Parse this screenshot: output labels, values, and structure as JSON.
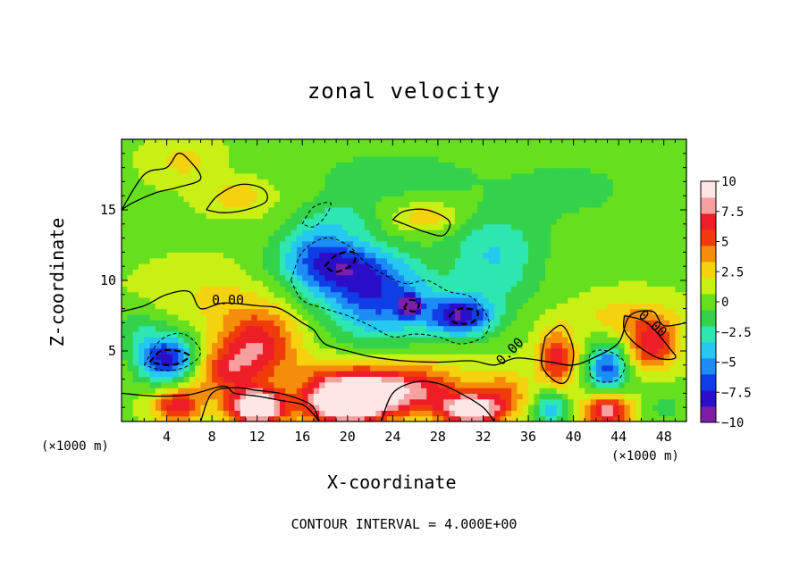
{
  "chart_data": {
    "type": "heatmap",
    "title": "zonal velocity",
    "xlabel": "X-coordinate",
    "ylabel": "Z-coordinate",
    "x_unit_label": "(×1000 m)",
    "xlim": [
      0,
      50
    ],
    "ylim": [
      0,
      20
    ],
    "x_ticks": [
      4,
      8,
      12,
      16,
      20,
      24,
      28,
      32,
      36,
      40,
      44,
      48
    ],
    "y_ticks": [
      5,
      10,
      15
    ],
    "colorbar": {
      "ticks": [
        "10",
        "7.5",
        "5",
        "2.5",
        "0",
        "−2.5",
        "−5",
        "−7.5",
        "−10"
      ],
      "range": [
        -10,
        10
      ],
      "colors": [
        "#7e1ea6",
        "#2a0fc8",
        "#0f3ee6",
        "#1e8cf5",
        "#25c9f0",
        "#2ee6b0",
        "#33d24a",
        "#66e01e",
        "#c8f014",
        "#f5d20f",
        "#f58c0a",
        "#f03c0a",
        "#ee1e28",
        "#f6a0a0",
        "#ffe6e6"
      ]
    },
    "contour_interval_text": "CONTOUR INTERVAL = 4.000E+00",
    "contour_labels": [
      "0.00",
      "0.00",
      "0.00"
    ],
    "background_value": 0.5,
    "features": [
      {
        "x": 4,
        "z": 4.5,
        "value": -8.5,
        "sx": 1.8,
        "sz": 1.2
      },
      {
        "x": 12,
        "z": 5.5,
        "value": 6.5,
        "sx": 2.5,
        "sz": 1.8
      },
      {
        "x": 9,
        "z": 3.5,
        "value": 4.5,
        "sx": 2.0,
        "sz": 1.2
      },
      {
        "x": 19,
        "z": 11.0,
        "value": -7.0,
        "sx": 3.5,
        "sz": 1.5
      },
      {
        "x": 23,
        "z": 8.5,
        "value": -6.5,
        "sx": 3.5,
        "sz": 2.0
      },
      {
        "x": 25.5,
        "z": 8.2,
        "value": -9.5,
        "sx": 0.6,
        "sz": 0.5
      },
      {
        "x": 30,
        "z": 7.5,
        "value": -8.0,
        "sx": 2.0,
        "sz": 1.0
      },
      {
        "x": 33,
        "z": 10.5,
        "value": -3.0,
        "sx": 3.0,
        "sz": 2.0
      },
      {
        "x": 17,
        "z": 13.0,
        "value": -2.5,
        "sx": 2.0,
        "sz": 1.5
      },
      {
        "x": 20,
        "z": 14.5,
        "value": -2.0,
        "sx": 2.0,
        "sz": 1.0
      },
      {
        "x": 27,
        "z": 14.5,
        "value": 3.0,
        "sx": 2.0,
        "sz": 0.7
      },
      {
        "x": 10.5,
        "z": 16.0,
        "value": 2.5,
        "sx": 2.0,
        "sz": 0.8
      },
      {
        "x": 5.5,
        "z": 18.5,
        "value": 2.0,
        "sx": 2.0,
        "sz": 1.0
      },
      {
        "x": 24,
        "z": 17.5,
        "value": -1.8,
        "sx": 6.0,
        "sz": 1.5
      },
      {
        "x": 40,
        "z": 16.5,
        "value": -1.5,
        "sx": 5.0,
        "sz": 2.0
      },
      {
        "x": 33,
        "z": 13.0,
        "value": -2.0,
        "sx": 3.0,
        "sz": 1.5
      },
      {
        "x": 12,
        "z": 1.0,
        "value": 11.0,
        "sx": 1.8,
        "sz": 0.9
      },
      {
        "x": 20,
        "z": 1.2,
        "value": 10.0,
        "sx": 2.5,
        "sz": 1.0
      },
      {
        "x": 20,
        "z": 2.5,
        "value": 6.0,
        "sx": 3.5,
        "sz": 1.2
      },
      {
        "x": 26,
        "z": 2.2,
        "value": 6.0,
        "sx": 3.5,
        "sz": 1.3
      },
      {
        "x": 31,
        "z": 0.8,
        "value": 9.5,
        "sx": 1.8,
        "sz": 0.8
      },
      {
        "x": 5,
        "z": 1.2,
        "value": 6.5,
        "sx": 1.5,
        "sz": 0.9
      },
      {
        "x": 43,
        "z": 0.8,
        "value": 8.0,
        "sx": 1.5,
        "sz": 0.8
      },
      {
        "x": 38.5,
        "z": 4.5,
        "value": 6.0,
        "sx": 1.2,
        "sz": 1.5
      },
      {
        "x": 47,
        "z": 5.5,
        "value": 6.5,
        "sx": 1.5,
        "sz": 1.2
      },
      {
        "x": 43,
        "z": 3.8,
        "value": -7.0,
        "sx": 1.2,
        "sz": 1.2
      },
      {
        "x": 38,
        "z": 1.0,
        "value": -5.0,
        "sx": 1.0,
        "sz": 0.9
      },
      {
        "x": 34,
        "z": 2.0,
        "value": 3.5,
        "sx": 1.5,
        "sz": 1.2
      },
      {
        "x": 15,
        "z": 2.5,
        "value": -1.0,
        "sx": 1.0,
        "sz": 0.8
      },
      {
        "x": 48,
        "z": 1.0,
        "value": -1.5,
        "sx": 1.5,
        "sz": 1.0
      },
      {
        "x": 1.5,
        "z": 6.5,
        "value": -2.0,
        "sx": 1.5,
        "sz": 1.2
      },
      {
        "x": 45,
        "z": 7.5,
        "value": 2.5,
        "sx": 3.0,
        "sz": 1.0
      },
      {
        "x": 8,
        "z": 9.0,
        "value": 1.5,
        "sx": 4.0,
        "sz": 1.5
      }
    ],
    "contours": [
      {
        "style": "solid",
        "points": [
          [
            0,
            7.8
          ],
          [
            2,
            8.2
          ],
          [
            4,
            9.0
          ],
          [
            6,
            9.2
          ],
          [
            7,
            8.0
          ],
          [
            9,
            8.4
          ],
          [
            12,
            8.2
          ],
          [
            14,
            8.0
          ],
          [
            16,
            7.0
          ],
          [
            17,
            6.5
          ],
          [
            18,
            5.5
          ],
          [
            20,
            5.0
          ],
          [
            22,
            4.6
          ],
          [
            25,
            4.3
          ],
          [
            28,
            4.2
          ],
          [
            31,
            4.3
          ],
          [
            33,
            4.0
          ],
          [
            35,
            4.5
          ],
          [
            38,
            4.2
          ],
          [
            40,
            4.0
          ],
          [
            42,
            4.6
          ],
          [
            44,
            5.6
          ],
          [
            45,
            7.5
          ],
          [
            47,
            7.8
          ],
          [
            48,
            6.8
          ],
          [
            50,
            7.0
          ]
        ]
      },
      {
        "style": "solid",
        "points": [
          [
            0,
            2.0
          ],
          [
            3,
            1.8
          ],
          [
            6,
            1.9
          ],
          [
            9,
            2.5
          ],
          [
            10,
            2.0
          ],
          [
            12,
            1.8
          ],
          [
            14,
            1.5
          ],
          [
            16,
            1.2
          ],
          [
            17,
            0.5
          ],
          [
            17.5,
            0
          ]
        ]
      },
      {
        "style": "solid",
        "points": [
          [
            7,
            0
          ],
          [
            8,
            2.0
          ],
          [
            10,
            2.4
          ],
          [
            12,
            2.2
          ],
          [
            14,
            2.0
          ],
          [
            16,
            1.5
          ],
          [
            17,
            1.0
          ],
          [
            17.5,
            0
          ]
        ]
      },
      {
        "style": "solid",
        "points": [
          [
            23,
            0
          ],
          [
            24,
            2.0
          ],
          [
            26,
            2.8
          ],
          [
            28,
            2.7
          ],
          [
            30,
            2.0
          ],
          [
            32,
            1.0
          ],
          [
            33,
            0
          ]
        ]
      },
      {
        "style": "solid",
        "points": [
          [
            7.5,
            15.0
          ],
          [
            8.5,
            16.0
          ],
          [
            10.5,
            16.8
          ],
          [
            12.5,
            16.5
          ],
          [
            12.8,
            15.6
          ],
          [
            11,
            15.0
          ],
          [
            9,
            14.8
          ],
          [
            7.5,
            15.0
          ]
        ]
      },
      {
        "style": "solid",
        "points": [
          [
            24,
            14.3
          ],
          [
            25,
            14.9
          ],
          [
            27,
            15.0
          ],
          [
            29,
            14.2
          ],
          [
            28.5,
            13.2
          ],
          [
            27,
            13.4
          ],
          [
            25,
            14.0
          ],
          [
            24,
            14.3
          ]
        ]
      },
      {
        "style": "solid",
        "points": [
          [
            0,
            15.0
          ],
          [
            2,
            17.5
          ],
          [
            4,
            18.0
          ],
          [
            5,
            19.0
          ],
          [
            6,
            18.5
          ],
          [
            7,
            17.2
          ],
          [
            5,
            16.6
          ],
          [
            3,
            16.2
          ],
          [
            1,
            15.5
          ],
          [
            0,
            15.0
          ]
        ]
      },
      {
        "style": "solid",
        "points": [
          [
            37.5,
            6.0
          ],
          [
            39,
            6.8
          ],
          [
            40,
            5.0
          ],
          [
            39.5,
            3.0
          ],
          [
            38.5,
            2.8
          ],
          [
            37.2,
            4.0
          ],
          [
            37.5,
            6.0
          ]
        ]
      },
      {
        "style": "solid",
        "points": [
          [
            44.5,
            7.5
          ],
          [
            46.5,
            7.0
          ],
          [
            48.5,
            5.2
          ],
          [
            49,
            4.5
          ],
          [
            47.5,
            4.5
          ],
          [
            45.5,
            5.5
          ],
          [
            44.5,
            6.5
          ],
          [
            44.5,
            7.5
          ]
        ]
      },
      {
        "style": "dashed",
        "points": [
          [
            2,
            4.0
          ],
          [
            3.5,
            5.8
          ],
          [
            5.5,
            6.2
          ],
          [
            7,
            5.0
          ],
          [
            6,
            4.0
          ],
          [
            4,
            3.6
          ],
          [
            2,
            4.0
          ]
        ]
      },
      {
        "style": "dashed",
        "points": [
          [
            15,
            10.0
          ],
          [
            16,
            12.0
          ],
          [
            18,
            13.0
          ],
          [
            20,
            12.5
          ],
          [
            22,
            11.0
          ],
          [
            25,
            9.8
          ],
          [
            27,
            10.0
          ],
          [
            29,
            9.2
          ],
          [
            31,
            8.8
          ],
          [
            32.5,
            7.2
          ],
          [
            32,
            6.0
          ],
          [
            30,
            5.5
          ],
          [
            28,
            6.0
          ],
          [
            26,
            6.2
          ],
          [
            24,
            6.0
          ],
          [
            22,
            6.8
          ],
          [
            20,
            7.5
          ],
          [
            18,
            8.0
          ],
          [
            16,
            8.6
          ],
          [
            15,
            10.0
          ]
        ]
      },
      {
        "style": "dashed",
        "points": [
          [
            16,
            14.0
          ],
          [
            17,
            15.2
          ],
          [
            18.5,
            15.5
          ],
          [
            18,
            14.5
          ],
          [
            17,
            13.8
          ],
          [
            16,
            14.0
          ]
        ]
      },
      {
        "style": "dashed",
        "points": [
          [
            41.5,
            3.2
          ],
          [
            41.5,
            4.8
          ],
          [
            43,
            5.0
          ],
          [
            44.5,
            4.2
          ],
          [
            44,
            3.0
          ],
          [
            42.5,
            2.8
          ],
          [
            41.5,
            3.2
          ]
        ]
      },
      {
        "style": "thickdash",
        "points": [
          [
            2.5,
            4.2
          ],
          [
            3.5,
            5.0
          ],
          [
            5,
            5.0
          ],
          [
            6,
            4.6
          ],
          [
            4.5,
            4.0
          ],
          [
            2.5,
            4.2
          ]
        ]
      },
      {
        "style": "thickdash",
        "points": [
          [
            18,
            11.0
          ],
          [
            19,
            11.8
          ],
          [
            20.5,
            12.0
          ],
          [
            20.5,
            11.2
          ],
          [
            19,
            10.6
          ],
          [
            18,
            11.0
          ]
        ]
      },
      {
        "style": "thickdash",
        "points": [
          [
            29,
            7.5
          ],
          [
            30,
            8.0
          ],
          [
            31.5,
            7.8
          ],
          [
            31,
            7.0
          ],
          [
            29.5,
            7.0
          ],
          [
            29,
            7.5
          ]
        ]
      },
      {
        "style": "thickdash",
        "points": [
          [
            25,
            8.0
          ],
          [
            25.5,
            8.6
          ],
          [
            26.3,
            8.4
          ],
          [
            26,
            7.8
          ],
          [
            25,
            8.0
          ]
        ]
      }
    ]
  }
}
